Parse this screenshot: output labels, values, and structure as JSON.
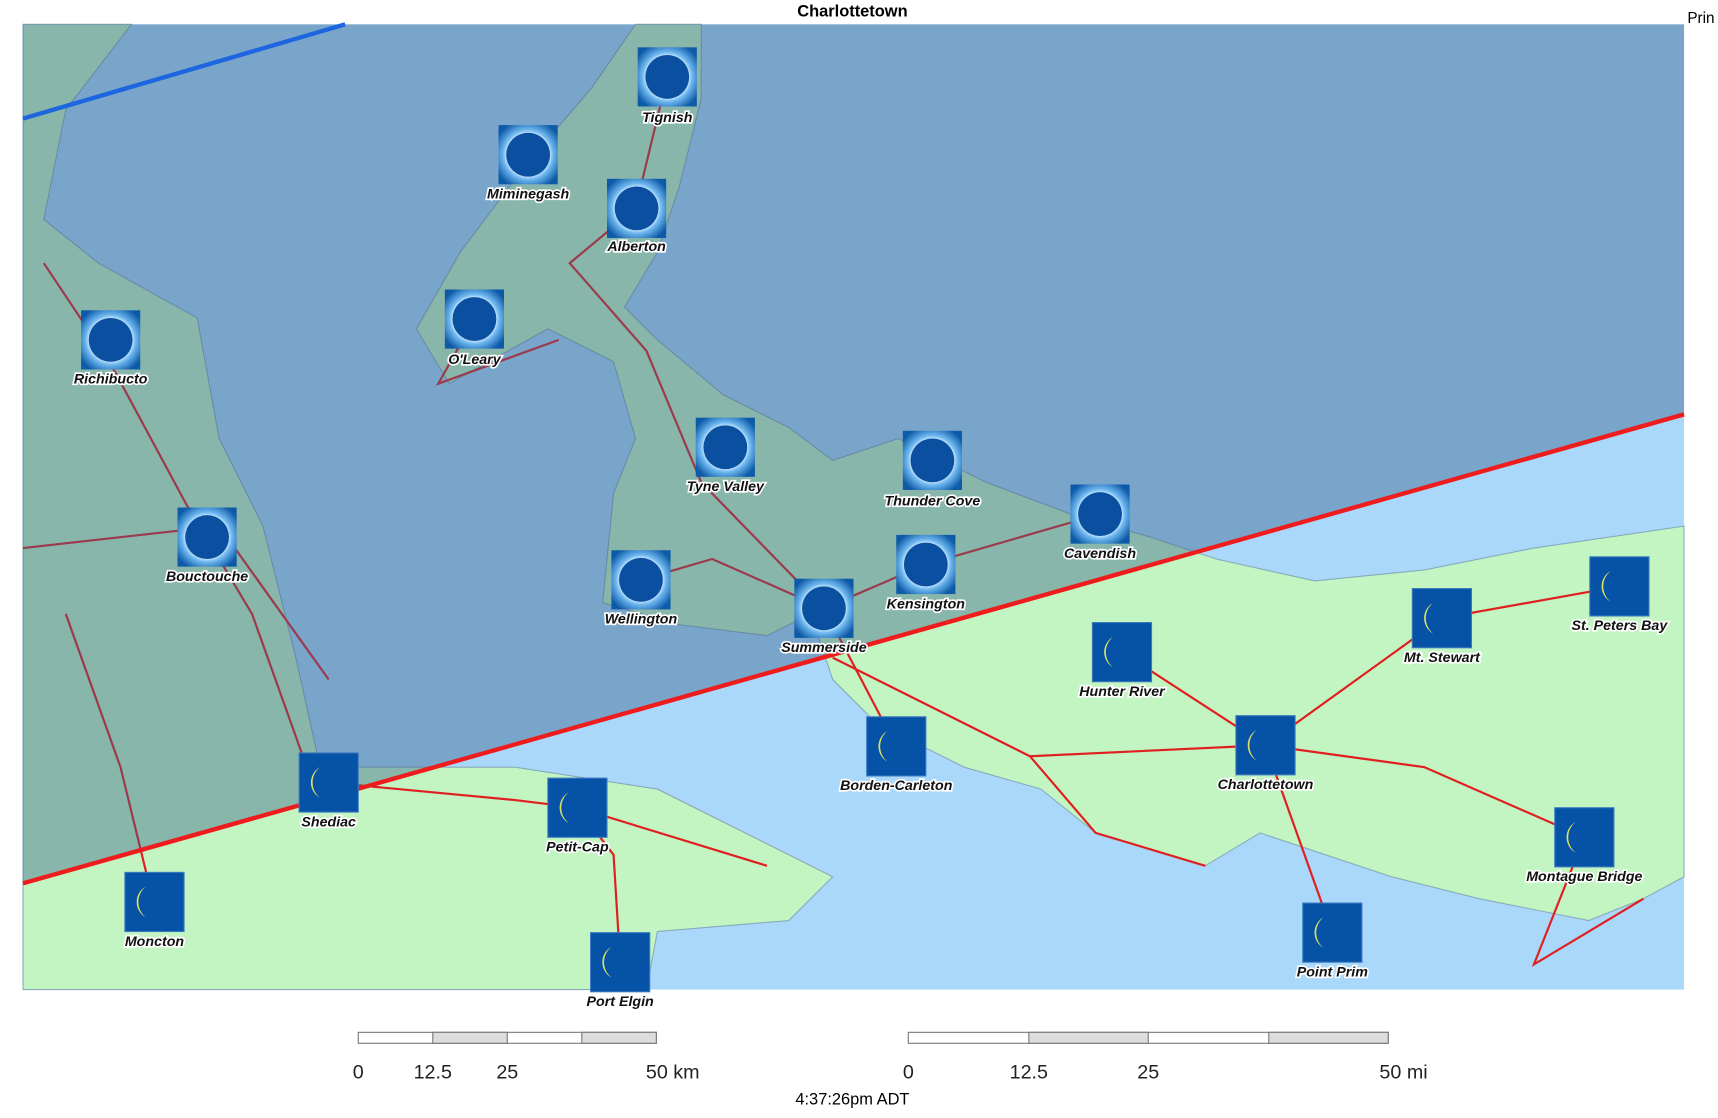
{
  "header": {
    "title": "Charlottetown",
    "corner_text": "Prin"
  },
  "places": [
    "Tignish",
    "Miminegash",
    "Alberton",
    "O'Leary",
    "Richibucto",
    "Tyne Valley",
    "Thunder Cove",
    "Cavendish",
    "Bouctouche",
    "Kensington",
    "Wellington",
    "Summerside",
    "St. Peters Bay",
    "Mt. Stewart",
    "Hunter River",
    "Borden-Carleton",
    "Charlottetown",
    "Shediac",
    "Petit-Cap",
    "Montague Bridge",
    "Moncton",
    "Point Prim",
    "Port Elgin"
  ],
  "scale_km": [
    "0",
    "12.5",
    "25",
    "50 km"
  ],
  "scale_mi": [
    "0",
    "12.5",
    "25",
    "50 mi"
  ],
  "footer": {
    "time": "4:37:26pm ADT"
  }
}
